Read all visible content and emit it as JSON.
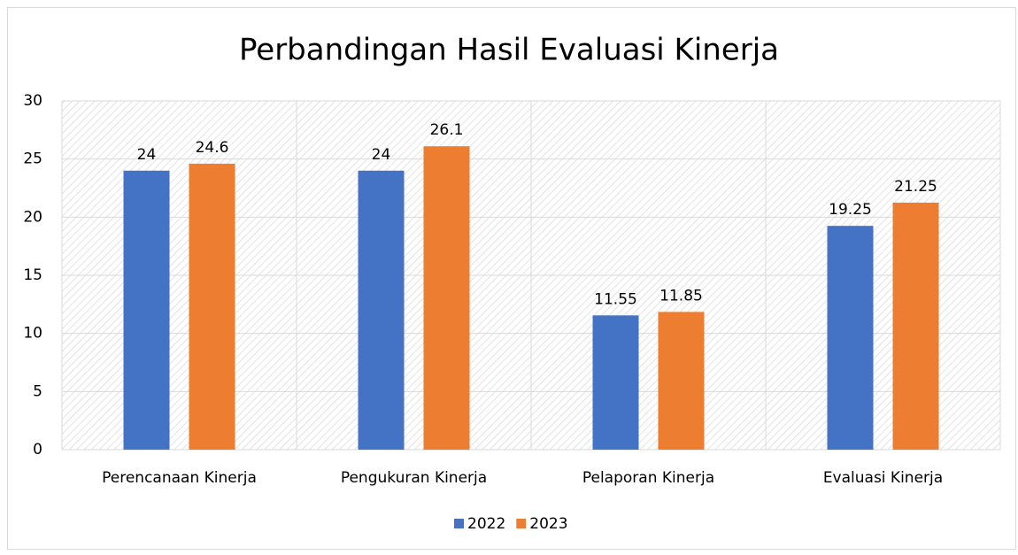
{
  "chart_data": {
    "type": "bar",
    "title": "Perbandingan Hasil Evaluasi Kinerja",
    "categories": [
      "Perencanaan Kinerja",
      "Pengukuran Kinerja",
      "Pelaporan Kinerja",
      "Evaluasi Kinerja"
    ],
    "series": [
      {
        "name": "2022",
        "color": "#4472c4",
        "values": [
          24,
          24,
          11.55,
          19.25
        ]
      },
      {
        "name": "2023",
        "color": "#ed7d31",
        "values": [
          24.6,
          26.1,
          11.85,
          21.25
        ]
      }
    ],
    "ylim": [
      0,
      30
    ],
    "yticks": [
      0,
      5,
      10,
      15,
      20,
      25,
      30
    ],
    "grid": true,
    "legend": "bottom"
  }
}
